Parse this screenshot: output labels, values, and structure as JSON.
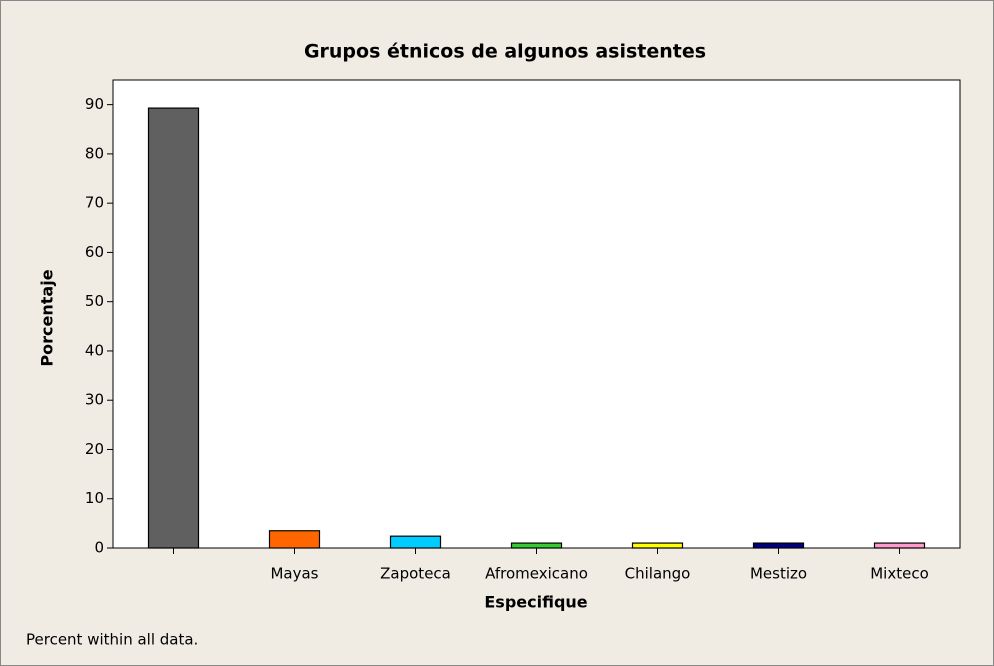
{
  "chart_data": {
    "type": "bar",
    "title": "Grupos étnicos de algunos asistentes",
    "x_label": "Especifique",
    "y_label": "Porcentaje",
    "footnote": "Percent within all data.",
    "categories": [
      null,
      "Mayas",
      "Zapoteca",
      "Afromexicano",
      "Chilango",
      "Mestizo",
      "Mixteco"
    ],
    "values": [
      89.3,
      3.5,
      2.4,
      1.0,
      1.0,
      1.0,
      1.0
    ],
    "colors": [
      "#606060",
      "#ff6600",
      "#00ccff",
      "#33cc33",
      "#ffff00",
      "#000080",
      "#ff99cc"
    ],
    "ylim": [
      0,
      95
    ],
    "yticks": [
      0,
      10,
      20,
      30,
      40,
      50,
      60,
      70,
      80,
      90
    ],
    "grid": false
  }
}
